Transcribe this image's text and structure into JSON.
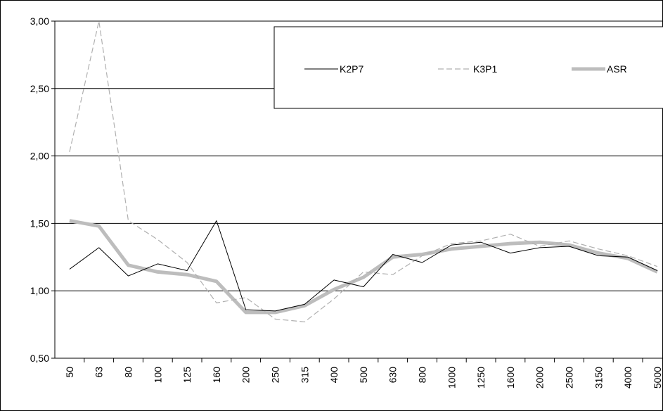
{
  "chart_data": {
    "type": "line",
    "categories": [
      "50",
      "63",
      "80",
      "100",
      "125",
      "160",
      "200",
      "250",
      "315",
      "400",
      "500",
      "630",
      "800",
      "1000",
      "1250",
      "1600",
      "2000",
      "2500",
      "3150",
      "4000",
      "5000"
    ],
    "series": [
      {
        "name": "K2P7",
        "color": "#000000",
        "dash": "solid",
        "width": 1,
        "values": [
          1.16,
          1.32,
          1.11,
          1.2,
          1.15,
          1.52,
          0.86,
          0.85,
          0.9,
          1.08,
          1.03,
          1.27,
          1.21,
          1.34,
          1.36,
          1.28,
          1.32,
          1.33,
          1.26,
          1.25,
          1.15
        ]
      },
      {
        "name": "K3P1",
        "color": "#b0b0b0",
        "dash": "dashed",
        "width": 1.2,
        "values": [
          2.03,
          3.0,
          1.52,
          1.38,
          1.21,
          0.91,
          0.95,
          0.79,
          0.77,
          0.94,
          1.14,
          1.12,
          1.26,
          1.35,
          1.37,
          1.42,
          1.33,
          1.37,
          1.31,
          1.26,
          1.18
        ]
      },
      {
        "name": "ASR",
        "color": "#bdbdbd",
        "dash": "solid",
        "width": 5,
        "values": [
          1.52,
          1.48,
          1.19,
          1.14,
          1.12,
          1.07,
          0.84,
          0.84,
          0.89,
          1.01,
          1.1,
          1.25,
          1.27,
          1.31,
          1.33,
          1.35,
          1.36,
          1.34,
          1.28,
          1.24,
          1.14
        ]
      }
    ],
    "ylim": [
      0.5,
      3.0
    ],
    "yticks": [
      {
        "value": 0.5,
        "label": "0,50"
      },
      {
        "value": 1,
        "label": "1,00"
      },
      {
        "value": 1.5,
        "label": "1,50"
      },
      {
        "value": 2,
        "label": "2,00"
      },
      {
        "value": 2.5,
        "label": "2,50"
      },
      {
        "value": 3,
        "label": "3,00"
      }
    ],
    "grid": true,
    "legend": "top-right"
  }
}
